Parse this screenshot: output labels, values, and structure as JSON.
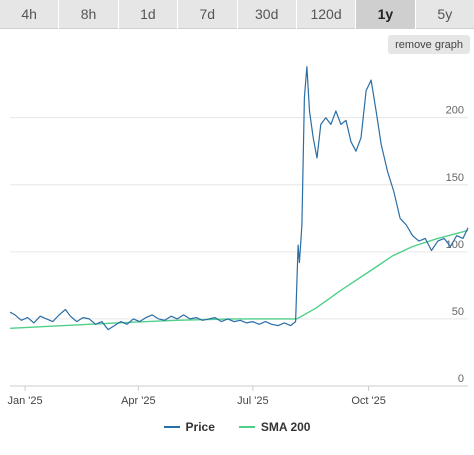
{
  "tabs": [
    "4h",
    "8h",
    "1d",
    "7d",
    "30d",
    "120d",
    "1y",
    "5y"
  ],
  "active_tab": "1y",
  "remove_graph_label": "remove graph",
  "colors": {
    "price": "#2a6ea6",
    "sma": "#4fd08a",
    "grid": "#e6e6e6",
    "tab_bg": "#e6e6e6"
  },
  "chart_data": {
    "type": "line",
    "x_range": [
      "2024-12-20",
      "2025-12-19"
    ],
    "ylim": [
      0,
      240
    ],
    "yticks": [
      0,
      50,
      100,
      150,
      200
    ],
    "xticks": [
      {
        "label": "Jan '25",
        "date": "2025-01-01"
      },
      {
        "label": "Apr '25",
        "date": "2025-04-01"
      },
      {
        "label": "Jul '25",
        "date": "2025-07-01"
      },
      {
        "label": "Oct '25",
        "date": "2025-10-01"
      }
    ],
    "legend": [
      "Price",
      "SMA 200"
    ],
    "series": [
      {
        "name": "Price",
        "points": [
          [
            "2024-12-20",
            55
          ],
          [
            "2024-12-24",
            53
          ],
          [
            "2024-12-29",
            49
          ],
          [
            "2025-01-03",
            51
          ],
          [
            "2025-01-08",
            47
          ],
          [
            "2025-01-13",
            52
          ],
          [
            "2025-01-18",
            50
          ],
          [
            "2025-01-23",
            48
          ],
          [
            "2025-01-28",
            53
          ],
          [
            "2025-02-02",
            57
          ],
          [
            "2025-02-06",
            52
          ],
          [
            "2025-02-11",
            48
          ],
          [
            "2025-02-16",
            51
          ],
          [
            "2025-02-21",
            50
          ],
          [
            "2025-02-26",
            46
          ],
          [
            "2025-03-03",
            48
          ],
          [
            "2025-03-08",
            42
          ],
          [
            "2025-03-13",
            45
          ],
          [
            "2025-03-18",
            48
          ],
          [
            "2025-03-23",
            46
          ],
          [
            "2025-03-28",
            50
          ],
          [
            "2025-04-02",
            48
          ],
          [
            "2025-04-07",
            51
          ],
          [
            "2025-04-12",
            53
          ],
          [
            "2025-04-17",
            50
          ],
          [
            "2025-04-22",
            49
          ],
          [
            "2025-04-27",
            52
          ],
          [
            "2025-05-02",
            50
          ],
          [
            "2025-05-07",
            53
          ],
          [
            "2025-05-12",
            50
          ],
          [
            "2025-05-17",
            51
          ],
          [
            "2025-05-22",
            49
          ],
          [
            "2025-05-27",
            50
          ],
          [
            "2025-06-01",
            51
          ],
          [
            "2025-06-06",
            48
          ],
          [
            "2025-06-11",
            50
          ],
          [
            "2025-06-16",
            48
          ],
          [
            "2025-06-21",
            49
          ],
          [
            "2025-06-26",
            47
          ],
          [
            "2025-07-01",
            48
          ],
          [
            "2025-07-06",
            46
          ],
          [
            "2025-07-11",
            48
          ],
          [
            "2025-07-16",
            46
          ],
          [
            "2025-07-21",
            45
          ],
          [
            "2025-07-26",
            47
          ],
          [
            "2025-07-31",
            45
          ],
          [
            "2025-08-04",
            48
          ],
          [
            "2025-08-06",
            105
          ],
          [
            "2025-08-07",
            92
          ],
          [
            "2025-08-09",
            120
          ],
          [
            "2025-08-11",
            215
          ],
          [
            "2025-08-13",
            238
          ],
          [
            "2025-08-15",
            205
          ],
          [
            "2025-08-18",
            185
          ],
          [
            "2025-08-21",
            170
          ],
          [
            "2025-08-24",
            195
          ],
          [
            "2025-08-28",
            200
          ],
          [
            "2025-09-01",
            195
          ],
          [
            "2025-09-05",
            205
          ],
          [
            "2025-09-09",
            195
          ],
          [
            "2025-09-13",
            198
          ],
          [
            "2025-09-17",
            182
          ],
          [
            "2025-09-21",
            175
          ],
          [
            "2025-09-25",
            185
          ],
          [
            "2025-09-29",
            220
          ],
          [
            "2025-10-03",
            228
          ],
          [
            "2025-10-07",
            205
          ],
          [
            "2025-10-11",
            180
          ],
          [
            "2025-10-16",
            160
          ],
          [
            "2025-10-21",
            145
          ],
          [
            "2025-10-26",
            125
          ],
          [
            "2025-10-31",
            120
          ],
          [
            "2025-11-05",
            112
          ],
          [
            "2025-11-10",
            108
          ],
          [
            "2025-11-15",
            110
          ],
          [
            "2025-11-20",
            101
          ],
          [
            "2025-11-25",
            108
          ],
          [
            "2025-11-30",
            110
          ],
          [
            "2025-12-05",
            104
          ],
          [
            "2025-12-10",
            112
          ],
          [
            "2025-12-15",
            110
          ],
          [
            "2025-12-19",
            118
          ]
        ]
      },
      {
        "name": "SMA 200",
        "points": [
          [
            "2024-12-20",
            43
          ],
          [
            "2025-02-01",
            45
          ],
          [
            "2025-03-15",
            47
          ],
          [
            "2025-05-01",
            49
          ],
          [
            "2025-06-15",
            50
          ],
          [
            "2025-07-15",
            50
          ],
          [
            "2025-08-05",
            50
          ],
          [
            "2025-08-20",
            58
          ],
          [
            "2025-09-10",
            72
          ],
          [
            "2025-10-01",
            85
          ],
          [
            "2025-10-20",
            97
          ],
          [
            "2025-11-05",
            104
          ],
          [
            "2025-11-25",
            110
          ],
          [
            "2025-12-19",
            116
          ]
        ]
      }
    ]
  }
}
